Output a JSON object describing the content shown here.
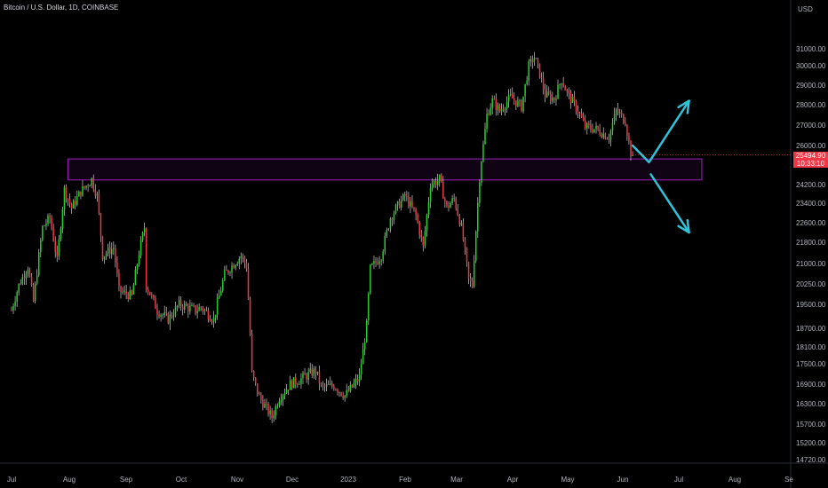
{
  "header": {
    "title": "Bitcoin / U.S. Dollar, 1D, COINBASE",
    "currency": "USD"
  },
  "price_tag": {
    "price": "25494.90",
    "countdown": "10:33:10",
    "color": "#f23645"
  },
  "colors": {
    "up": "#22d12a",
    "down": "#f23645",
    "wick": "#cfcfcf",
    "zone": "#a020c0",
    "arrows": "#2fc3d8"
  },
  "chart_data": {
    "type": "candlestick",
    "title": "Bitcoin / U.S. Dollar, 1D, COINBASE",
    "y_ticks": [
      "31000.00",
      "30000.00",
      "29000.00",
      "28000.00",
      "27000.00",
      "26000.00",
      "25000.00",
      "24200.00",
      "23400.00",
      "22600.00",
      "21800.00",
      "21000.00",
      "20250.00",
      "19500.00",
      "18700.00",
      "18100.00",
      "17500.00",
      "16900.00",
      "16300.00",
      "15700.00",
      "15200.00",
      "14720.00"
    ],
    "x_ticks": [
      "Jul",
      "Aug",
      "Sep",
      "Oct",
      "Nov",
      "Dec",
      "2023",
      "Feb",
      "Mar",
      "Apr",
      "May",
      "Jun",
      "Jul",
      "Aug",
      "Se"
    ],
    "close_path": [
      [
        "2022-07-01",
        19300
      ],
      [
        "2022-07-05",
        20200
      ],
      [
        "2022-07-10",
        20900
      ],
      [
        "2022-07-13",
        19600
      ],
      [
        "2022-07-18",
        22400
      ],
      [
        "2022-07-22",
        22800
      ],
      [
        "2022-07-26",
        21100
      ],
      [
        "2022-07-30",
        24000
      ],
      [
        "2022-08-03",
        23200
      ],
      [
        "2022-08-08",
        23900
      ],
      [
        "2022-08-14",
        24400
      ],
      [
        "2022-08-17",
        23700
      ],
      [
        "2022-08-20",
        21300
      ],
      [
        "2022-08-26",
        21600
      ],
      [
        "2022-08-29",
        20000
      ],
      [
        "2022-09-05",
        19800
      ],
      [
        "2022-09-09",
        21400
      ],
      [
        "2022-09-12",
        22400
      ],
      [
        "2022-09-13",
        20200
      ],
      [
        "2022-09-19",
        19300
      ],
      [
        "2022-09-25",
        19000
      ],
      [
        "2022-10-01",
        19500
      ],
      [
        "2022-10-10",
        19300
      ],
      [
        "2022-10-13",
        19400
      ],
      [
        "2022-10-20",
        19000
      ],
      [
        "2022-10-26",
        20600
      ],
      [
        "2022-11-04",
        21300
      ],
      [
        "2022-11-07",
        20900
      ],
      [
        "2022-11-09",
        18500
      ],
      [
        "2022-11-10",
        17200
      ],
      [
        "2022-11-14",
        16500
      ],
      [
        "2022-11-21",
        15900
      ],
      [
        "2022-11-25",
        16500
      ],
      [
        "2022-12-01",
        16900
      ],
      [
        "2022-12-05",
        17000
      ],
      [
        "2022-12-15",
        17300
      ],
      [
        "2022-12-18",
        16800
      ],
      [
        "2022-12-25",
        16850
      ],
      [
        "2022-12-31",
        16550
      ],
      [
        "2023-01-08",
        17100
      ],
      [
        "2023-01-12",
        18800
      ],
      [
        "2023-01-14",
        20800
      ],
      [
        "2023-01-20",
        21300
      ],
      [
        "2023-01-25",
        22800
      ],
      [
        "2023-01-30",
        23400
      ],
      [
        "2023-02-02",
        23700
      ],
      [
        "2023-02-08",
        22900
      ],
      [
        "2023-02-12",
        21600
      ],
      [
        "2023-02-16",
        24200
      ],
      [
        "2023-02-21",
        24400
      ],
      [
        "2023-02-25",
        23200
      ],
      [
        "2023-03-01",
        23600
      ],
      [
        "2023-03-05",
        22400
      ],
      [
        "2023-03-09",
        20400
      ],
      [
        "2023-03-11",
        20200
      ],
      [
        "2023-03-13",
        22300
      ],
      [
        "2023-03-15",
        24500
      ],
      [
        "2023-03-19",
        27500
      ],
      [
        "2023-03-22",
        28200
      ],
      [
        "2023-03-26",
        27700
      ],
      [
        "2023-04-01",
        28400
      ],
      [
        "2023-04-07",
        27900
      ],
      [
        "2023-04-11",
        30000
      ],
      [
        "2023-04-14",
        30500
      ],
      [
        "2023-04-17",
        29600
      ],
      [
        "2023-04-20",
        28500
      ],
      [
        "2023-04-25",
        28300
      ],
      [
        "2023-04-29",
        29300
      ],
      [
        "2023-05-02",
        28600
      ],
      [
        "2023-05-08",
        27700
      ],
      [
        "2023-05-12",
        26900
      ],
      [
        "2023-05-18",
        26800
      ],
      [
        "2023-05-25",
        26400
      ],
      [
        "2023-05-29",
        27700
      ],
      [
        "2023-06-03",
        27200
      ],
      [
        "2023-06-06",
        25600
      ],
      [
        "2023-06-07",
        25494.9
      ]
    ],
    "resistance_zone": {
      "from": "2022-08-01",
      "to": "2023-07-15",
      "low": 24380,
      "high": 25280
    },
    "projection_up": [
      [
        "2023-06-07",
        26000
      ],
      [
        "2023-06-16",
        25100
      ],
      [
        "2023-07-08",
        28200
      ]
    ],
    "projection_down": [
      [
        "2023-06-17",
        24600
      ],
      [
        "2023-07-08",
        22200
      ]
    ]
  }
}
